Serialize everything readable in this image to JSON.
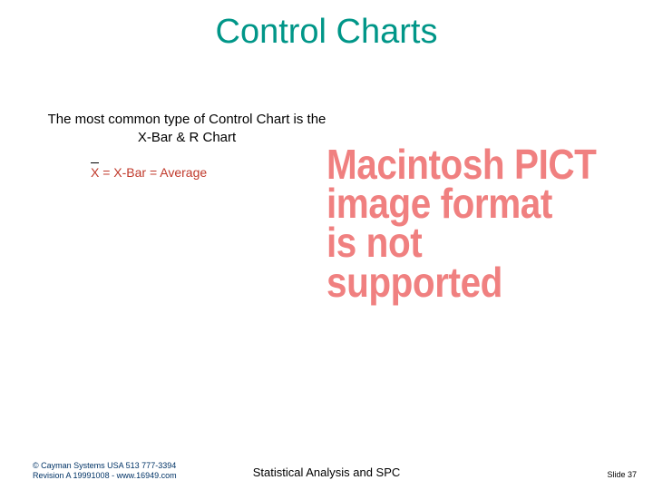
{
  "colors": {
    "title": "#009688",
    "formula": "#c0392b",
    "pict": "#f08080",
    "footer_left": "#003366"
  },
  "title": "Control Charts",
  "subtitle": "The most common type of Control Chart is the X-Bar & R Chart",
  "formula": {
    "x": "X",
    "rest": " = X-Bar = Average"
  },
  "pict_lines": [
    "Macintosh PICT",
    "image format",
    "is not supported"
  ],
  "footer": {
    "left_line1": "© Cayman Systems USA  513  777-3394",
    "left_line2": "Revision A 19991008 -  www.16949.com",
    "center": "Statistical Analysis and SPC",
    "right": "Slide 37"
  },
  "typography": {
    "title_fontsize": 38,
    "subtitle_fontsize": 15,
    "formula_fontsize": 14,
    "pict_fontsize": 46,
    "footer_small_fontsize": 9,
    "footer_center_fontsize": 13
  }
}
